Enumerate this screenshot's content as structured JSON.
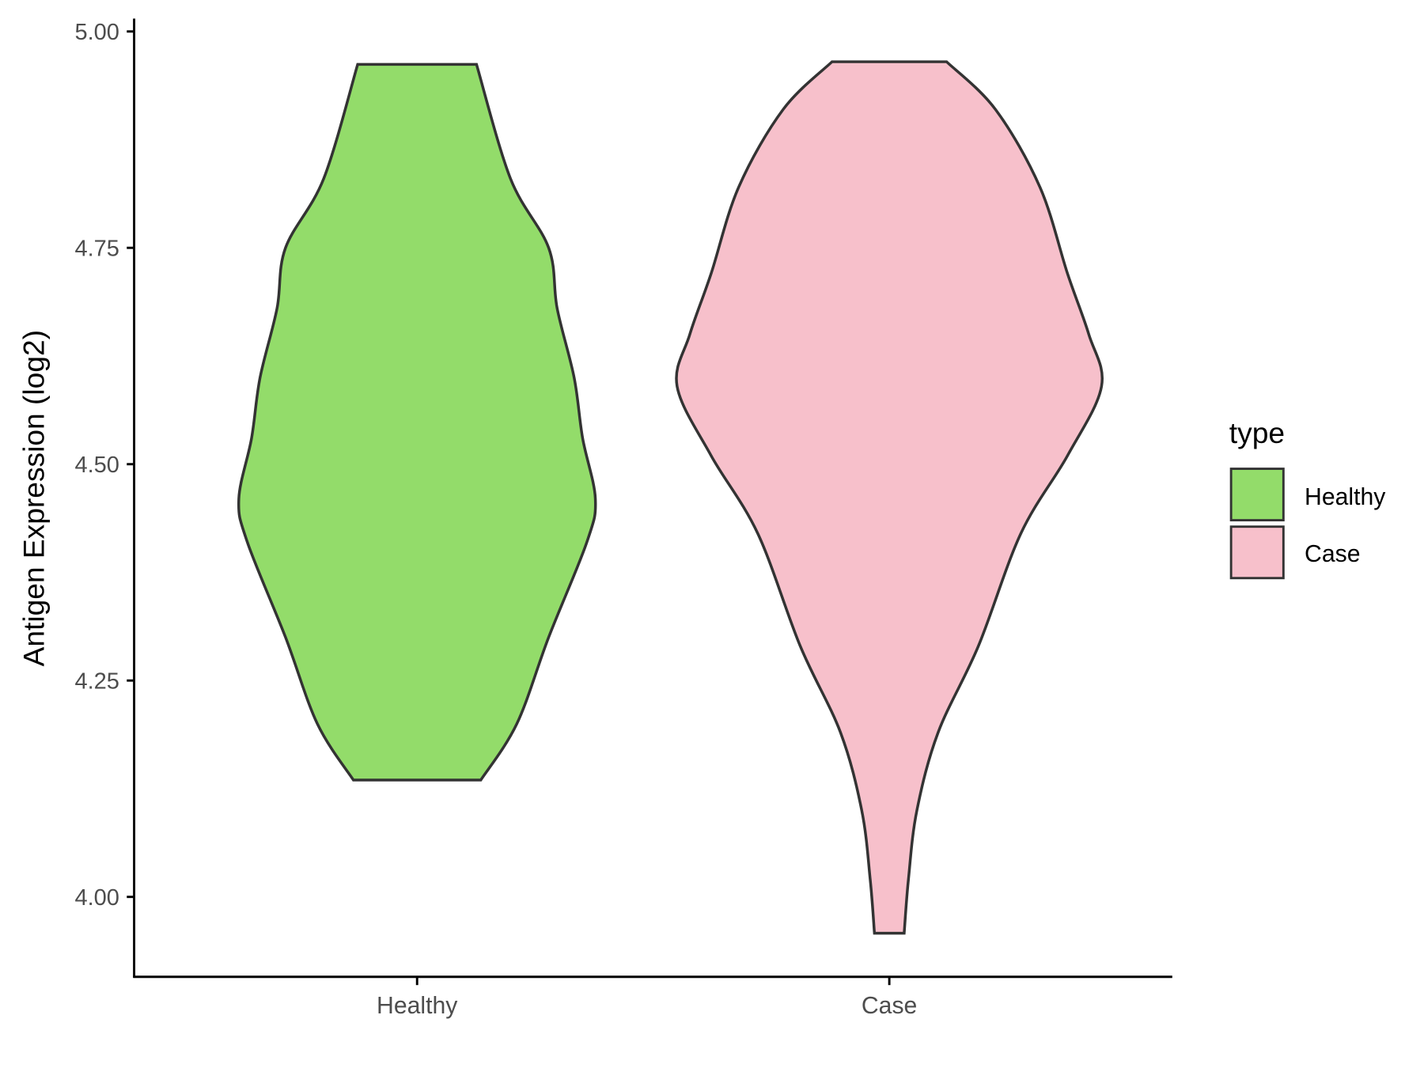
{
  "chart_data": {
    "type": "violin",
    "title": "",
    "xlabel": "",
    "ylabel": "Antigen Expression (log2)",
    "categories": [
      "Healthy",
      "Case"
    ],
    "yticks": [
      "4.00",
      "4.25",
      "4.50",
      "4.75",
      "5.00"
    ],
    "ylim": [
      3.91,
      5.015
    ],
    "grid": false,
    "legend": {
      "title": "type",
      "position": "right",
      "entries": [
        "Healthy",
        "Case"
      ]
    },
    "series": [
      {
        "name": "Healthy",
        "color": "#93DC6A",
        "min": 4.135,
        "max": 4.962,
        "density_profile": [
          [
            4.135,
            0.3
          ],
          [
            4.2,
            0.47
          ],
          [
            4.3,
            0.62
          ],
          [
            4.41,
            0.8
          ],
          [
            4.46,
            0.84
          ],
          [
            4.53,
            0.78
          ],
          [
            4.6,
            0.74
          ],
          [
            4.68,
            0.66
          ],
          [
            4.75,
            0.62
          ],
          [
            4.83,
            0.44
          ],
          [
            4.962,
            0.28
          ]
        ]
      },
      {
        "name": "Case",
        "color": "#F7C0CB",
        "min": 3.958,
        "max": 4.965,
        "density_profile": [
          [
            3.958,
            0.07
          ],
          [
            4.02,
            0.09
          ],
          [
            4.1,
            0.13
          ],
          [
            4.19,
            0.23
          ],
          [
            4.29,
            0.42
          ],
          [
            4.42,
            0.62
          ],
          [
            4.51,
            0.84
          ],
          [
            4.59,
            1.0
          ],
          [
            4.65,
            0.94
          ],
          [
            4.72,
            0.84
          ],
          [
            4.82,
            0.71
          ],
          [
            4.91,
            0.5
          ],
          [
            4.965,
            0.27
          ]
        ]
      }
    ]
  }
}
